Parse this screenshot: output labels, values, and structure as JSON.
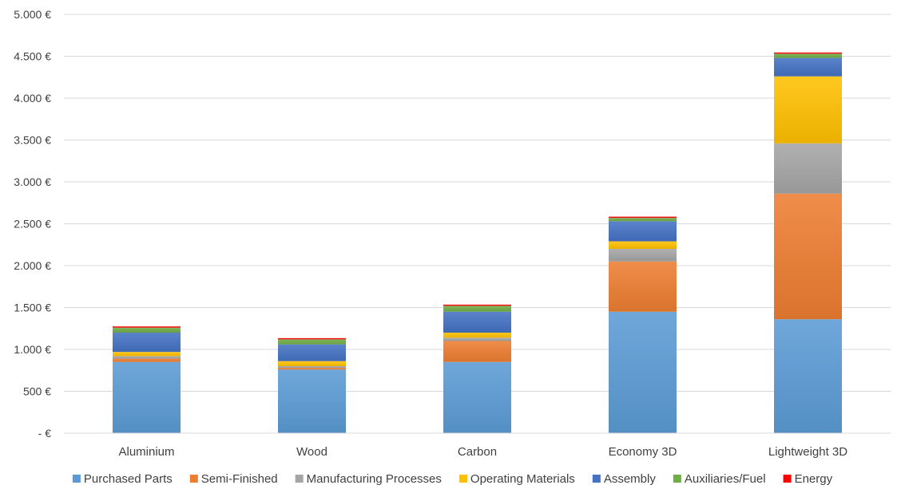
{
  "chart_data": {
    "type": "bar",
    "stacked": true,
    "title": "",
    "xlabel": "",
    "ylabel": "",
    "ylim": [
      0,
      5000
    ],
    "yticks": [
      0,
      500,
      1000,
      1500,
      2000,
      2500,
      3000,
      3500,
      4000,
      4500,
      5000
    ],
    "ytick_labels": [
      "- €",
      "500 €",
      "1.000 €",
      "1.500 €",
      "2.000 €",
      "2.500 €",
      "3.000 €",
      "3.500 €",
      "4.000 €",
      "4.500 €",
      "5.000 €"
    ],
    "grid": true,
    "legend_position": "bottom",
    "categories": [
      "Aluminium",
      "Wood",
      "Carbon",
      "Economy 3D",
      "Lightweight 3D"
    ],
    "series": [
      {
        "name": "Purchased Parts",
        "color": "#5B9BD5",
        "values": [
          850,
          760,
          850,
          1450,
          1360
        ]
      },
      {
        "name": "Semi-Finished",
        "color": "#ED7D31",
        "values": [
          40,
          20,
          250,
          600,
          1500
        ]
      },
      {
        "name": "Manufacturing Processes",
        "color": "#A5A5A5",
        "values": [
          30,
          20,
          40,
          150,
          600
        ]
      },
      {
        "name": "Operating Materials",
        "color": "#FFC000",
        "values": [
          50,
          60,
          60,
          90,
          800
        ]
      },
      {
        "name": "Assembly",
        "color": "#4472C4",
        "values": [
          230,
          200,
          250,
          240,
          220
        ]
      },
      {
        "name": "Auxiliaries/Fuel",
        "color": "#70AD47",
        "values": [
          60,
          60,
          70,
          40,
          50
        ]
      },
      {
        "name": "Energy",
        "color": "#FF0000",
        "values": [
          15,
          15,
          15,
          15,
          15
        ]
      }
    ]
  }
}
